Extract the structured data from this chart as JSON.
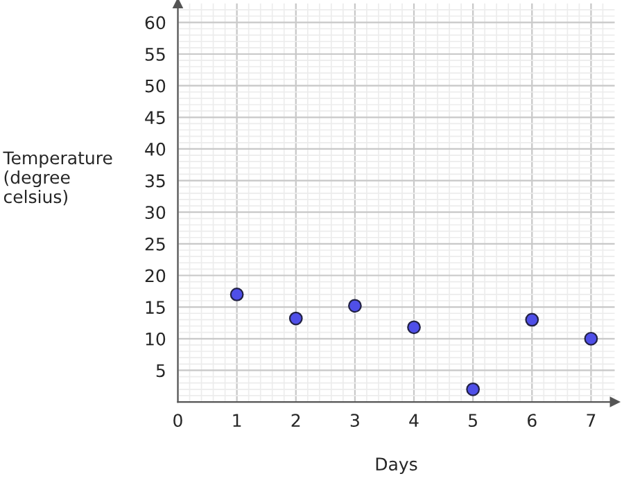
{
  "chart_data": {
    "type": "scatter",
    "xlabel": "Days",
    "ylabel": "Temperature\n(degree\ncelsius)",
    "x": [
      1,
      2,
      3,
      4,
      5,
      6,
      7
    ],
    "series": [
      {
        "color": "#4f4fe8",
        "values": [
          17,
          13.2,
          15.2,
          11.8,
          2,
          13,
          10
        ]
      }
    ],
    "xlim": [
      0,
      7.4
    ],
    "xticks": [
      0,
      1,
      2,
      3,
      4,
      5,
      6,
      7
    ],
    "ylim": [
      0,
      63
    ],
    "yticks": [
      5,
      10,
      15,
      20,
      25,
      30,
      35,
      40,
      45,
      50,
      55,
      60
    ],
    "grid": true,
    "marker": "circle"
  }
}
